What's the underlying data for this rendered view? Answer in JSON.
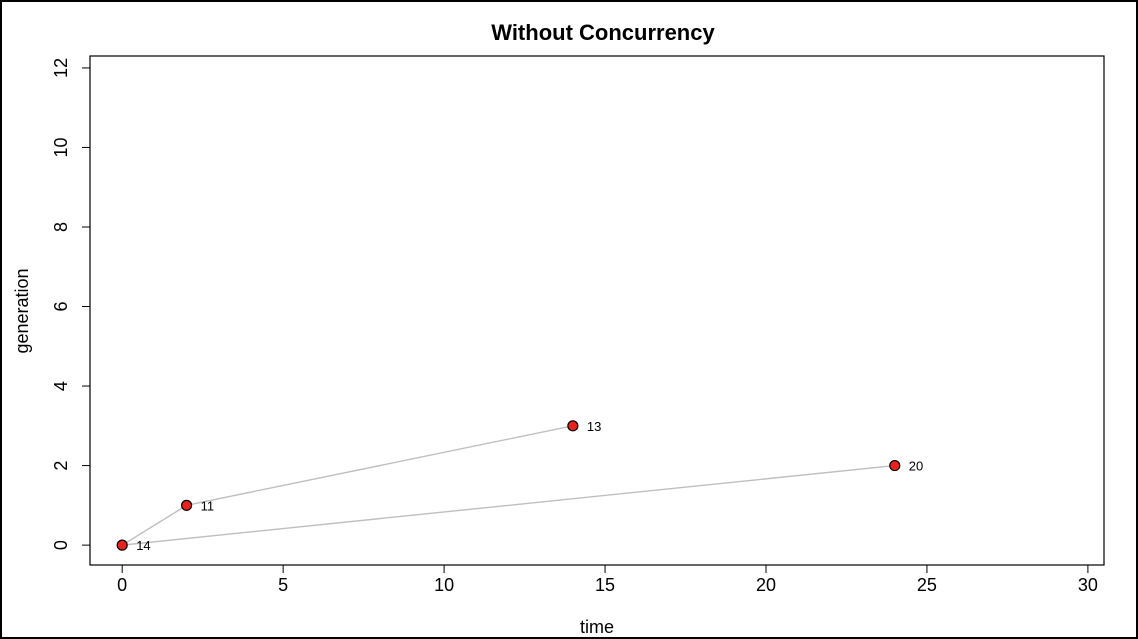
{
  "chart_data": {
    "type": "scatter",
    "title": "Without Concurrency",
    "xlabel": "time",
    "ylabel": "generation",
    "xlim": [
      -1,
      30.5
    ],
    "ylim": [
      -0.5,
      12.3
    ],
    "x_ticks": [
      0,
      5,
      10,
      15,
      20,
      25,
      30
    ],
    "y_ticks": [
      0,
      2,
      4,
      6,
      8,
      10,
      12
    ],
    "grid": false,
    "colors": {
      "point_fill": "#e8231e",
      "point_stroke": "#000000",
      "edge": "#bfbfbf"
    },
    "points": [
      {
        "x": 0,
        "y": 0,
        "label": "14"
      },
      {
        "x": 2,
        "y": 1,
        "label": "11"
      },
      {
        "x": 14,
        "y": 3,
        "label": "13"
      },
      {
        "x": 24,
        "y": 2,
        "label": "20"
      }
    ],
    "edges": [
      {
        "from": "14",
        "to": "11"
      },
      {
        "from": "11",
        "to": "13"
      },
      {
        "from": "14",
        "to": "20"
      }
    ]
  }
}
